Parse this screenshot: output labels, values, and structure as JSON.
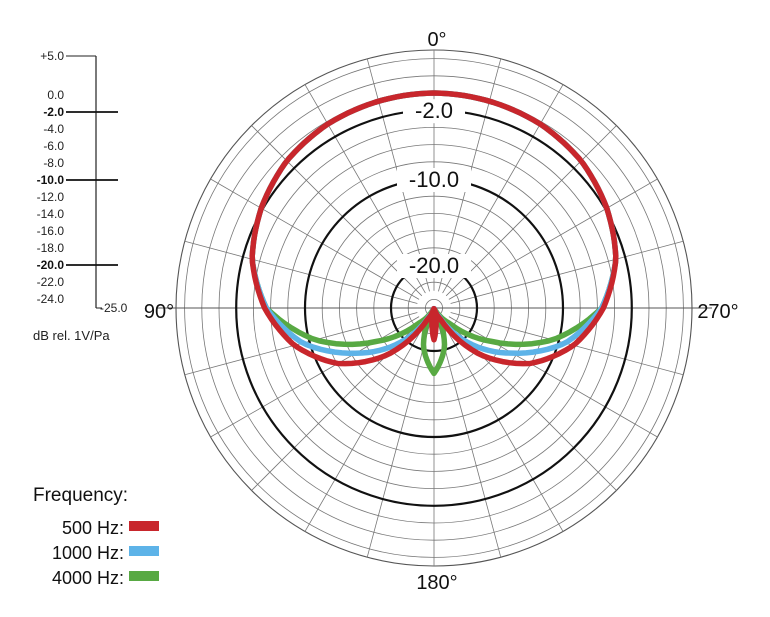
{
  "chart_data": {
    "type": "polar",
    "axis_unit_label": "dB rel. 1V/Pa",
    "radial_range_db": [
      -25.0,
      5.0
    ],
    "radial_scale_labels": [
      "+5.0",
      "0.0",
      "-2.0",
      "-4.0",
      "-6.0",
      "-8.0",
      "-10.0",
      "-12.0",
      "-14.0",
      "-16.0",
      "-18.0",
      "-20.0",
      "-22.0",
      "-24.0",
      "-25.0"
    ],
    "radial_scale_values": [
      5,
      0,
      -2,
      -4,
      -6,
      -8,
      -10,
      -12,
      -14,
      -16,
      -18,
      -20,
      -22,
      -24,
      -25
    ],
    "radial_scale_bold": [
      "-2.0",
      "-10.0",
      "-20.0"
    ],
    "ring_labels": [
      {
        "text": "-2.0",
        "value": -2
      },
      {
        "text": "-10.0",
        "value": -10
      },
      {
        "text": "-20.0",
        "value": -20
      }
    ],
    "angle_labels": {
      "top": "0°",
      "left": "90°",
      "right": "270°",
      "bottom": "180°"
    },
    "angle_grid_step_deg": 15,
    "legend_title": "Frequency:",
    "series": [
      {
        "name": "500 Hz:",
        "color": "#c8262c",
        "points": [
          [
            0,
            0
          ],
          [
            15,
            -0.1
          ],
          [
            30,
            -0.3
          ],
          [
            45,
            -0.8
          ],
          [
            60,
            -1.8
          ],
          [
            75,
            -3.1
          ],
          [
            90,
            -5.3
          ],
          [
            105,
            -8.2
          ],
          [
            120,
            -12.1
          ],
          [
            135,
            -17.3
          ],
          [
            150,
            -23.5
          ],
          [
            165,
            -25
          ],
          [
            180,
            -21.3
          ]
        ]
      },
      {
        "name": "1000 Hz:",
        "color": "#5db3e8",
        "points": [
          [
            0,
            0
          ],
          [
            15,
            -0.1
          ],
          [
            30,
            -0.3
          ],
          [
            45,
            -0.8
          ],
          [
            60,
            -1.8
          ],
          [
            75,
            -3.1
          ],
          [
            90,
            -5.5
          ],
          [
            105,
            -9.2
          ],
          [
            120,
            -14.5
          ],
          [
            135,
            -19.2
          ],
          [
            150,
            -23.9
          ],
          [
            165,
            -25
          ],
          [
            180,
            -23.7
          ]
        ]
      },
      {
        "name": "4000 Hz:",
        "color": "#58a943",
        "points": [
          [
            0,
            0
          ],
          [
            15,
            -0.1
          ],
          [
            30,
            -0.3
          ],
          [
            45,
            -0.8
          ],
          [
            60,
            -1.8
          ],
          [
            75,
            -3.1
          ],
          [
            90,
            -5.5
          ],
          [
            105,
            -10.7
          ],
          [
            120,
            -17.2
          ],
          [
            135,
            -22.5
          ],
          [
            150,
            -24.6
          ],
          [
            165,
            -20.3
          ],
          [
            180,
            -17.4
          ]
        ]
      }
    ]
  }
}
